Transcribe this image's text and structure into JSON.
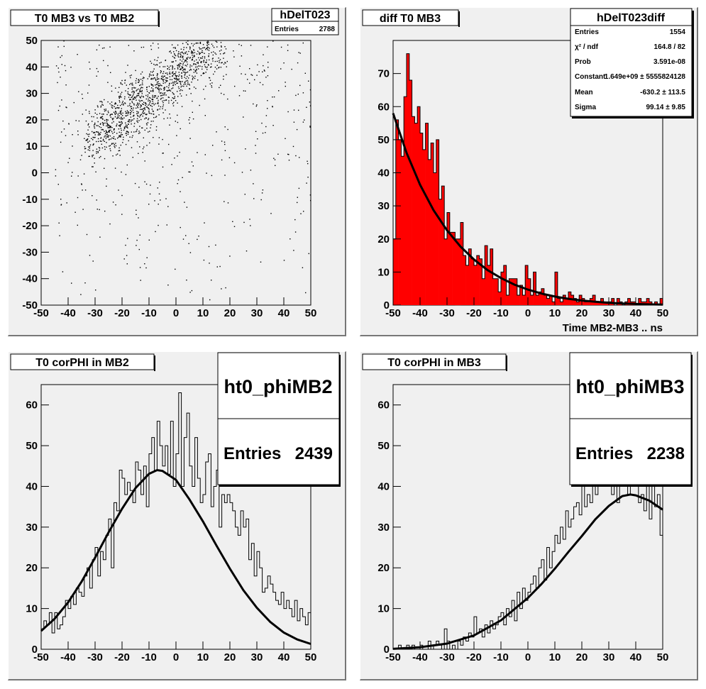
{
  "pads": [
    {
      "title": "T0 MB3 vs T0 MB2",
      "stats": {
        "name": "hDelT023",
        "rows": [
          {
            "label": "Entries",
            "value": "2788"
          }
        ]
      }
    },
    {
      "title": "diff T0 MB3",
      "xlabel": "Time MB2-MB3  ..  ns",
      "stats": {
        "name": "hDelT023diff",
        "rows": [
          {
            "label": "Entries",
            "value": "1554"
          },
          {
            "label": "χ² / ndf",
            "value": "164.8 / 82"
          },
          {
            "label": "Prob",
            "value": "3.591e-08"
          },
          {
            "label": "Constant",
            "value": "1.649e+09 ± 5555824128"
          },
          {
            "label": "Mean",
            "value": "-630.2 ± 113.5"
          },
          {
            "label": "Sigma",
            "value": "99.14 ± 9.85"
          }
        ]
      }
    },
    {
      "title": "T0 corPHI in MB2",
      "stats": {
        "name": "ht0_phiMB2",
        "rows": [
          {
            "label": "Entries",
            "value": "2439"
          }
        ]
      }
    },
    {
      "title": "T0 corPHI in MB3",
      "stats": {
        "name": "ht0_phiMB3",
        "rows": [
          {
            "label": "Entries",
            "value": "2238"
          }
        ]
      }
    }
  ],
  "chart_data": [
    {
      "type": "scatter",
      "title": "T0 MB3 vs T0 MB2",
      "entries": 2788,
      "xlim": [
        -50,
        50
      ],
      "ylim": [
        -50,
        50
      ],
      "xticks": [
        "-50",
        "-40",
        "-30",
        "-20",
        "-10",
        "0",
        "10",
        "20",
        "30",
        "40",
        "50"
      ],
      "yticks": [
        "-50",
        "-40",
        "-30",
        "-20",
        "-10",
        "0",
        "10",
        "20",
        "30",
        "40",
        "50"
      ],
      "density": {
        "band_center": [
          [
            -30,
            14
          ],
          [
            -15,
            25
          ],
          [
            -5,
            32
          ],
          [
            5,
            42
          ],
          [
            15,
            48
          ]
        ],
        "band_sigma": 6
      }
    },
    {
      "type": "bar",
      "title": "diff T0 MB3",
      "xlabel": "Time MB2-MB3  ..  ns",
      "xlim": [
        -50,
        50
      ],
      "ylim": [
        0,
        80
      ],
      "bin_width": 1,
      "xticks": [
        "-50",
        "-40",
        "-30",
        "-20",
        "-10",
        "0",
        "10",
        "20",
        "30",
        "40",
        "50"
      ],
      "yticks": [
        "0",
        "10",
        "20",
        "30",
        "40",
        "50",
        "60",
        "70"
      ],
      "values": [
        20,
        56,
        50,
        45,
        63,
        76,
        68,
        57,
        55,
        60,
        52,
        47,
        55,
        44,
        49,
        40,
        50,
        32,
        36,
        20,
        28,
        22,
        22,
        20,
        20,
        25,
        15,
        12,
        17,
        14,
        12,
        15,
        14,
        8,
        18,
        12,
        17,
        8,
        8,
        4,
        10,
        12,
        3,
        8,
        8,
        8,
        3,
        6,
        3,
        12,
        8,
        3,
        10,
        3,
        4,
        5,
        3,
        2,
        3,
        1,
        10,
        2,
        1,
        3,
        2,
        4,
        3,
        2,
        1,
        3,
        2,
        1,
        1,
        2,
        3,
        1,
        1,
        2,
        1,
        1,
        1,
        2,
        0,
        2,
        1,
        0,
        1,
        2,
        1,
        1,
        0,
        2,
        1,
        1,
        2,
        1,
        0,
        1,
        0,
        2
      ],
      "fit": {
        "function": "gaus",
        "x": [
          -50,
          -45,
          -40,
          -35,
          -30,
          -25,
          -20,
          -15,
          -10,
          -5,
          0,
          5,
          10,
          15,
          20,
          25,
          30,
          35,
          40,
          45,
          50
        ],
        "y": [
          58,
          46,
          36.4,
          28.7,
          22.6,
          17.7,
          13.8,
          10.6,
          8.2,
          6.2,
          4.7,
          3.5,
          2.6,
          1.9,
          1.4,
          1.0,
          0.7,
          0.5,
          0.35,
          0.24,
          0.16
        ]
      }
    },
    {
      "type": "line",
      "title": "T0 corPHI in MB2",
      "xlim": [
        -50,
        50
      ],
      "ylim": [
        0,
        65
      ],
      "bin_width": 1,
      "xticks": [
        "-50",
        "-40",
        "-30",
        "-20",
        "-10",
        "0",
        "10",
        "20",
        "30",
        "40",
        "50"
      ],
      "yticks": [
        "0",
        "10",
        "20",
        "30",
        "40",
        "50",
        "60"
      ],
      "values": [
        5,
        7,
        6,
        9,
        4,
        9,
        5,
        6,
        8,
        12,
        10,
        13,
        11,
        15,
        14,
        13,
        18,
        20,
        15,
        22,
        25,
        18,
        24,
        22,
        28,
        32,
        20,
        36,
        34,
        44,
        42,
        38,
        41,
        39,
        36,
        46,
        44,
        38,
        45,
        35,
        48,
        52,
        44,
        56,
        50,
        45,
        50,
        43,
        56,
        40,
        48,
        63,
        40,
        52,
        58,
        45,
        40,
        52,
        42,
        36,
        38,
        46,
        48,
        35,
        40,
        44,
        30,
        38,
        36,
        38,
        36,
        34,
        30,
        28,
        34,
        30,
        32,
        22,
        26,
        18,
        24,
        20,
        14,
        15,
        18,
        16,
        14,
        12,
        11,
        14,
        10,
        12,
        10,
        8,
        12,
        7,
        10,
        8,
        6,
        9
      ],
      "fit": {
        "function": "gaus",
        "x": [
          -50,
          -45,
          -40,
          -35,
          -30,
          -25,
          -20,
          -15,
          -10,
          -7,
          -5,
          0,
          5,
          10,
          15,
          20,
          25,
          30,
          35,
          40,
          45,
          50
        ],
        "y": [
          4.5,
          7.5,
          11.5,
          16.6,
          22.5,
          28.7,
          34.5,
          39.6,
          43.1,
          44,
          43.8,
          41.6,
          36.8,
          31.4,
          25.5,
          19.8,
          14.5,
          10.2,
          6.7,
          4.1,
          2.4,
          1.3
        ]
      }
    },
    {
      "type": "line",
      "title": "T0 corPHI in MB3",
      "xlim": [
        -50,
        50
      ],
      "ylim": [
        0,
        65
      ],
      "bin_width": 1,
      "xticks": [
        "-50",
        "-40",
        "-30",
        "-20",
        "-10",
        "0",
        "10",
        "20",
        "30",
        "40",
        "50"
      ],
      "yticks": [
        "0",
        "10",
        "20",
        "30",
        "40",
        "50",
        "60"
      ],
      "values": [
        0,
        0,
        1,
        0,
        0,
        1,
        0,
        1,
        0,
        0,
        1,
        0,
        0,
        2,
        0,
        1,
        2,
        1,
        0,
        5,
        2,
        0,
        1,
        0,
        2,
        1,
        3,
        2,
        4,
        3,
        8,
        4,
        5,
        3,
        6,
        4,
        7,
        5,
        6,
        8,
        9,
        6,
        10,
        8,
        12,
        7,
        14,
        10,
        15,
        12,
        14,
        16,
        18,
        15,
        20,
        22,
        17,
        25,
        20,
        24,
        28,
        26,
        30,
        27,
        34,
        30,
        32,
        35,
        36,
        33,
        40,
        35,
        38,
        36,
        44,
        38,
        42,
        40,
        46,
        45,
        40,
        38,
        44,
        36,
        42,
        40,
        46,
        38,
        44,
        42,
        40,
        36,
        38,
        34,
        40,
        32,
        42,
        35,
        38,
        28
      ],
      "fit": {
        "function": "gaus",
        "x": [
          -50,
          -40,
          -30,
          -20,
          -10,
          0,
          5,
          10,
          15,
          20,
          25,
          30,
          35,
          38,
          40,
          45,
          50
        ],
        "y": [
          0.1,
          0.5,
          1.4,
          3.4,
          7.1,
          12.6,
          16.0,
          19.8,
          23.9,
          27.8,
          31.9,
          35.2,
          37.6,
          38,
          37.8,
          36.5,
          34.3
        ]
      }
    }
  ]
}
